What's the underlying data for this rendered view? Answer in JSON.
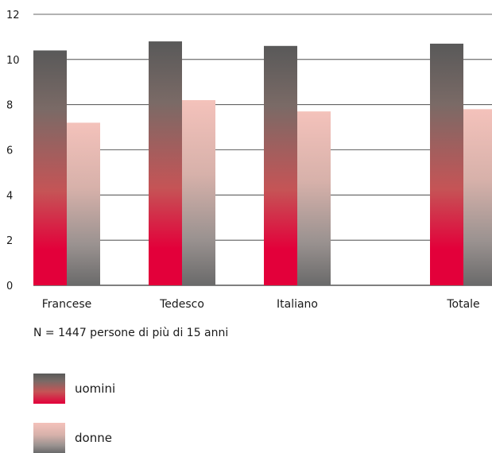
{
  "chart_data": {
    "type": "bar",
    "categories": [
      "Francese",
      "Tedesco",
      "Italiano",
      "Totale"
    ],
    "series": [
      {
        "name": "uomini",
        "values": [
          10.4,
          10.8,
          10.6,
          10.7
        ]
      },
      {
        "name": "donne",
        "values": [
          7.2,
          8.2,
          7.7,
          7.8
        ]
      }
    ],
    "ylim": [
      0,
      12
    ],
    "yticks": [
      "0",
      "2",
      "4",
      "6",
      "8",
      "10",
      "12"
    ],
    "grid": true,
    "legend_placement": "bottom-left"
  },
  "note": "N = 1447 persone di più di 15 anni",
  "legend": [
    {
      "label": "uomini"
    },
    {
      "label": "donne"
    }
  ],
  "colors": {
    "men_top": "#595959",
    "men_bottom": "#e3003a",
    "women_top": "#f4c2bb",
    "women_bottom": "#6a6a6a",
    "grid": "#333333"
  }
}
